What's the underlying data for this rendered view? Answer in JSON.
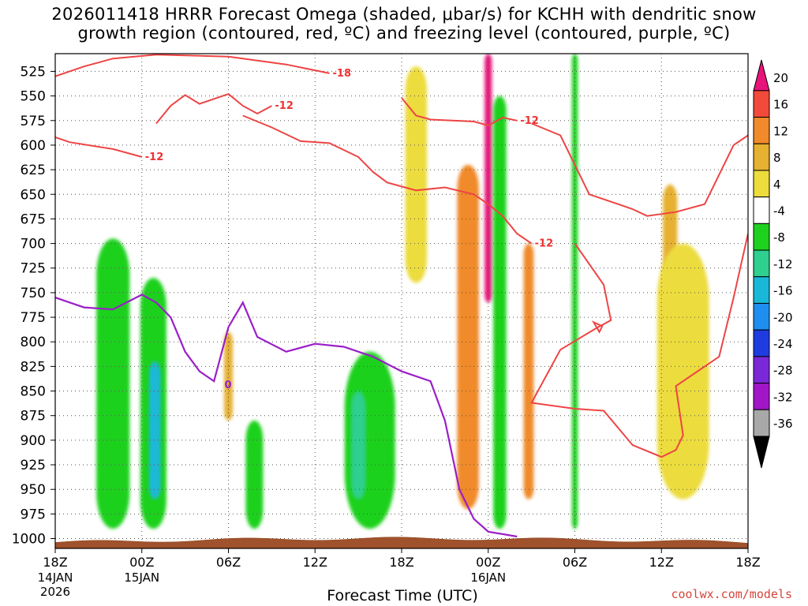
{
  "title_line1": "2026011418 HRRR Forecast Omega (shaded, μbar/s) for KCHH with dendritic snow",
  "title_line2": "growth region (contoured, red, ºC) and freezing level (contoured, purple, ºC)",
  "credit": "coolwx.com/models",
  "chart_data": {
    "type": "heatmap",
    "xlabel": "Forecast Time (UTC)",
    "x_ticks": [
      {
        "label": "18Z",
        "sub1": "14JAN",
        "sub2": "2026",
        "hour": 0
      },
      {
        "label": "00Z",
        "sub1": "15JAN",
        "sub2": "",
        "hour": 6
      },
      {
        "label": "06Z",
        "sub1": "",
        "sub2": "",
        "hour": 12
      },
      {
        "label": "12Z",
        "sub1": "",
        "sub2": "",
        "hour": 18
      },
      {
        "label": "18Z",
        "sub1": "",
        "sub2": "",
        "hour": 24
      },
      {
        "label": "00Z",
        "sub1": "16JAN",
        "sub2": "",
        "hour": 30
      },
      {
        "label": "06Z",
        "sub1": "",
        "sub2": "",
        "hour": 36
      },
      {
        "label": "12Z",
        "sub1": "",
        "sub2": "",
        "hour": 42
      },
      {
        "label": "18Z",
        "sub1": "",
        "sub2": "",
        "hour": 48
      }
    ],
    "xlim": [
      0,
      48
    ],
    "y_ticks": [
      525,
      550,
      575,
      600,
      625,
      650,
      675,
      700,
      725,
      750,
      775,
      800,
      825,
      850,
      875,
      900,
      925,
      950,
      975,
      1000
    ],
    "ylim": [
      1010,
      507
    ],
    "grid": true,
    "colorbar": {
      "labels": [
        "20",
        "16",
        "12",
        "8",
        "4",
        "-4",
        "-8",
        "-12",
        "-16",
        "-20",
        "-24",
        "-28",
        "-32",
        "-36"
      ],
      "colors": [
        "#e8147a",
        "#f24a3a",
        "#f08a2a",
        "#e6b030",
        "#ecdc3c",
        "#ffffff",
        "#1fd11f",
        "#2fcf8f",
        "#1ab8d8",
        "#1e8ef0",
        "#1e3ce0",
        "#7a28d8",
        "#a016c8",
        "#a8a8a8"
      ]
    },
    "freezing_level_label": "0",
    "freezing_level": [
      [
        0,
        755
      ],
      [
        2,
        765
      ],
      [
        4,
        767
      ],
      [
        6,
        752
      ],
      [
        7,
        760
      ],
      [
        8,
        775
      ],
      [
        9,
        810
      ],
      [
        10,
        830
      ],
      [
        11,
        840
      ],
      [
        12,
        785
      ],
      [
        13,
        760
      ],
      [
        14,
        795
      ],
      [
        16,
        810
      ],
      [
        18,
        802
      ],
      [
        20,
        805
      ],
      [
        22,
        815
      ],
      [
        24,
        830
      ],
      [
        26,
        840
      ],
      [
        27,
        880
      ],
      [
        28,
        950
      ],
      [
        29,
        980
      ],
      [
        30,
        993
      ],
      [
        32,
        998
      ]
    ],
    "dgz_contours": [
      {
        "label": "-18",
        "points": [
          [
            0,
            530
          ],
          [
            2,
            520
          ],
          [
            4,
            512
          ],
          [
            7,
            508
          ],
          [
            12,
            510
          ],
          [
            16,
            518
          ],
          [
            19,
            527
          ]
        ]
      },
      {
        "label": "-12",
        "points": [
          [
            0,
            592
          ],
          [
            1,
            597
          ],
          [
            4,
            604
          ],
          [
            6,
            612
          ]
        ]
      },
      {
        "label": "-12",
        "points": [
          [
            7,
            578
          ],
          [
            8,
            560
          ],
          [
            9,
            549
          ],
          [
            10,
            558
          ],
          [
            11,
            553
          ],
          [
            12,
            548
          ],
          [
            13,
            560
          ],
          [
            14,
            568
          ],
          [
            15,
            560
          ]
        ]
      },
      {
        "label": "-12",
        "points": [
          [
            13,
            570
          ],
          [
            15,
            582
          ],
          [
            17,
            596
          ],
          [
            19,
            598
          ],
          [
            21,
            612
          ],
          [
            22,
            627
          ],
          [
            23,
            638
          ],
          [
            25,
            646
          ],
          [
            27,
            643
          ],
          [
            29,
            650
          ],
          [
            30,
            660
          ],
          [
            31,
            672
          ],
          [
            32,
            690
          ],
          [
            33,
            700
          ]
        ]
      },
      {
        "label": "-12",
        "points": [
          [
            24,
            552
          ],
          [
            25,
            570
          ],
          [
            26,
            574
          ],
          [
            29,
            576
          ],
          [
            30,
            580
          ],
          [
            31,
            572
          ],
          [
            32,
            575
          ]
        ]
      },
      {
        "label": "-12",
        "points": [
          [
            33,
            578
          ],
          [
            35,
            590
          ],
          [
            36,
            620
          ],
          [
            37,
            650
          ],
          [
            39,
            660
          ],
          [
            40,
            665
          ],
          [
            41,
            672
          ],
          [
            43,
            668
          ],
          [
            45,
            660
          ],
          [
            46,
            630
          ],
          [
            47,
            600
          ],
          [
            48,
            590
          ]
        ]
      },
      {
        "label": "-12",
        "points": [
          [
            36,
            700
          ],
          [
            38,
            742
          ],
          [
            38.5,
            778
          ],
          [
            37.5,
            786
          ],
          [
            35,
            808
          ],
          [
            34,
            835
          ],
          [
            33,
            862
          ],
          [
            36,
            868
          ],
          [
            38,
            870
          ],
          [
            40,
            905
          ],
          [
            42,
            917
          ],
          [
            43,
            910
          ],
          [
            43.5,
            895
          ],
          [
            43,
            845
          ],
          [
            45,
            825
          ],
          [
            46,
            815
          ],
          [
            47,
            755
          ],
          [
            48,
            690
          ]
        ]
      }
    ],
    "omega_regions": [
      {
        "value": -4,
        "hour": 1.0,
        "p_top": 512,
        "p_bot": 555,
        "w": 1.2
      },
      {
        "value": -8,
        "hour": 4.0,
        "p_top": 695,
        "p_bot": 990,
        "w": 2.3
      },
      {
        "value": -8,
        "hour": 6.8,
        "p_top": 735,
        "p_bot": 990,
        "w": 1.8
      },
      {
        "value": -16,
        "hour": 6.9,
        "p_top": 820,
        "p_bot": 960,
        "w": 0.8
      },
      {
        "value": 8,
        "hour": 12.0,
        "p_top": 790,
        "p_bot": 880,
        "w": 0.6
      },
      {
        "value": -8,
        "hour": 13.8,
        "p_top": 880,
        "p_bot": 990,
        "w": 1.2
      },
      {
        "value": -8,
        "hour": 21.8,
        "p_top": 810,
        "p_bot": 990,
        "w": 3.5
      },
      {
        "value": -12,
        "hour": 21.0,
        "p_top": 850,
        "p_bot": 960,
        "w": 1.0
      },
      {
        "value": 4,
        "hour": 25.0,
        "p_top": 520,
        "p_bot": 740,
        "w": 1.5
      },
      {
        "value": 12,
        "hour": 28.6,
        "p_top": 620,
        "p_bot": 970,
        "w": 1.5
      },
      {
        "value": 20,
        "hour": 30.0,
        "p_top": 507,
        "p_bot": 760,
        "w": 0.5
      },
      {
        "value": -8,
        "hour": 30.8,
        "p_top": 550,
        "p_bot": 990,
        "w": 0.9
      },
      {
        "value": 12,
        "hour": 32.8,
        "p_top": 700,
        "p_bot": 960,
        "w": 0.7
      },
      {
        "value": -8,
        "hour": 36.0,
        "p_top": 507,
        "p_bot": 990,
        "w": 0.4
      },
      {
        "value": 8,
        "hour": 42.6,
        "p_top": 640,
        "p_bot": 790,
        "w": 1.0
      },
      {
        "value": 4,
        "hour": 43.5,
        "p_top": 700,
        "p_bot": 960,
        "w": 3.6
      }
    ]
  }
}
